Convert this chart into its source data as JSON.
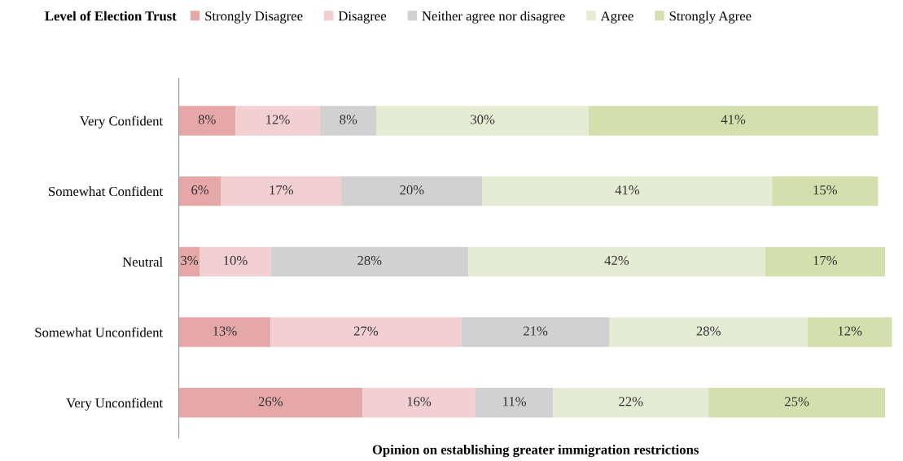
{
  "chart_data": {
    "type": "bar",
    "orientation": "horizontal",
    "stacked": true,
    "ylabel": "Level of Election Trust",
    "xlabel": "Opinion on establishing greater immigration restrictions",
    "categories": [
      "Very Confident",
      "Somewhat Confident",
      "Neutral",
      "Somewhat Unconfident",
      "Very Unconfident"
    ],
    "series": [
      {
        "name": "Strongly Disagree",
        "color": "#e5a7a8",
        "values": [
          8,
          6,
          3,
          13,
          26
        ],
        "value_labels": [
          "8%",
          "6%",
          "3%",
          "13%",
          "26%"
        ]
      },
      {
        "name": "Disagree",
        "color": "#f2cfd0",
        "values": [
          12,
          17,
          10,
          27,
          16
        ],
        "value_labels": [
          "12%",
          "17%",
          "10%",
          "27%",
          "16%"
        ]
      },
      {
        "name": "Neither agree nor disagree",
        "color": "#d1d1d1",
        "values": [
          8,
          20,
          28,
          21,
          11
        ],
        "value_labels": [
          "8%",
          "20%",
          "28%",
          "21%",
          "11%"
        ]
      },
      {
        "name": "Agree",
        "color": "#e6ecd4",
        "values": [
          30,
          41,
          42,
          28,
          22
        ],
        "value_labels": [
          "30%",
          "41%",
          "42%",
          "28%",
          "22%"
        ]
      },
      {
        "name": "Strongly Agree",
        "color": "#d4dfae",
        "values": [
          41,
          15,
          17,
          12,
          25
        ],
        "value_labels": [
          "41%",
          "15%",
          "17%",
          "12%",
          "25%"
        ]
      }
    ],
    "legend": "top",
    "grid": false
  }
}
